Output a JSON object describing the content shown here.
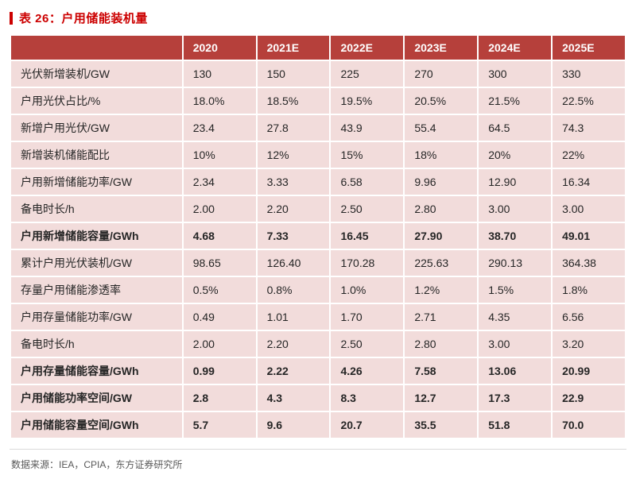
{
  "title": {
    "text": "表 26：户用储能装机量"
  },
  "table": {
    "header": [
      "",
      "2020",
      "2021E",
      "2022E",
      "2023E",
      "2024E",
      "2025E"
    ],
    "rows": [
      {
        "label": "光伏新增装机/GW",
        "bold": false,
        "values": [
          "130",
          "150",
          "225",
          "270",
          "300",
          "330"
        ]
      },
      {
        "label": "户用光伏占比/%",
        "bold": false,
        "values": [
          "18.0%",
          "18.5%",
          "19.5%",
          "20.5%",
          "21.5%",
          "22.5%"
        ]
      },
      {
        "label": "新增户用光伏/GW",
        "bold": false,
        "values": [
          "23.4",
          "27.8",
          "43.9",
          "55.4",
          "64.5",
          "74.3"
        ]
      },
      {
        "label": "新增装机储能配比",
        "bold": false,
        "values": [
          "10%",
          "12%",
          "15%",
          "18%",
          "20%",
          "22%"
        ]
      },
      {
        "label": "户用新增储能功率/GW",
        "bold": false,
        "values": [
          "2.34",
          "3.33",
          "6.58",
          "9.96",
          "12.90",
          "16.34"
        ]
      },
      {
        "label": "备电时长/h",
        "bold": false,
        "values": [
          "2.00",
          "2.20",
          "2.50",
          "2.80",
          "3.00",
          "3.00"
        ]
      },
      {
        "label": "户用新增储能容量/GWh",
        "bold": true,
        "values": [
          "4.68",
          "7.33",
          "16.45",
          "27.90",
          "38.70",
          "49.01"
        ]
      },
      {
        "label": "累计户用光伏装机/GW",
        "bold": false,
        "values": [
          "98.65",
          "126.40",
          "170.28",
          "225.63",
          "290.13",
          "364.38"
        ]
      },
      {
        "label": "存量户用储能渗透率",
        "bold": false,
        "values": [
          "0.5%",
          "0.8%",
          "1.0%",
          "1.2%",
          "1.5%",
          "1.8%"
        ]
      },
      {
        "label": "户用存量储能功率/GW",
        "bold": false,
        "values": [
          "0.49",
          "1.01",
          "1.70",
          "2.71",
          "4.35",
          "6.56"
        ]
      },
      {
        "label": "备电时长/h",
        "bold": false,
        "values": [
          "2.00",
          "2.20",
          "2.50",
          "2.80",
          "3.00",
          "3.20"
        ]
      },
      {
        "label": "户用存量储能容量/GWh",
        "bold": true,
        "values": [
          "0.99",
          "2.22",
          "4.26",
          "7.58",
          "13.06",
          "20.99"
        ]
      },
      {
        "label": "户用储能功率空间/GW",
        "bold": true,
        "values": [
          "2.8",
          "4.3",
          "8.3",
          "12.7",
          "17.3",
          "22.9"
        ]
      },
      {
        "label": "户用储能容量空间/GWh",
        "bold": true,
        "values": [
          "5.7",
          "9.6",
          "20.7",
          "35.5",
          "51.8",
          "70.0"
        ]
      }
    ]
  },
  "footer": {
    "source": "数据来源：IEA，CPIA，东方证券研究所"
  },
  "colors": {
    "title_red": "#cc0000",
    "header_bg": "#b6403b",
    "row_bg": "#f2dcdb"
  }
}
